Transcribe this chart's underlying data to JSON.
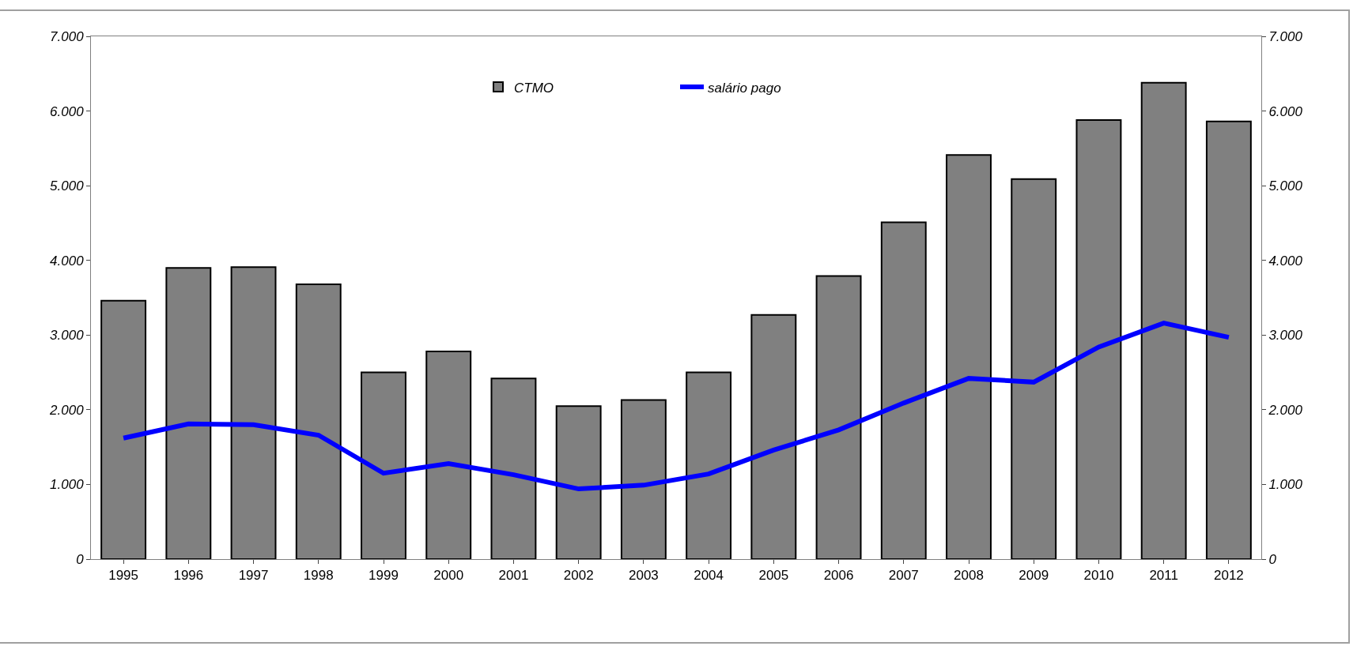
{
  "chart_data": {
    "type": "bar",
    "categories": [
      "1995",
      "1996",
      "1997",
      "1998",
      "1999",
      "2000",
      "2001",
      "2002",
      "2003",
      "2004",
      "2005",
      "2006",
      "2007",
      "2008",
      "2009",
      "2010",
      "2011",
      "2012"
    ],
    "series": [
      {
        "name": "CTMO",
        "color": "#808080",
        "values": [
          3460,
          3900,
          3910,
          3680,
          2500,
          2780,
          2420,
          2050,
          2130,
          2500,
          3270,
          3790,
          4510,
          5410,
          5090,
          5880,
          6380,
          5860
        ]
      },
      {
        "name": "salário pago",
        "type": "line",
        "axis": "y2",
        "color": "#0000ff",
        "values": [
          1620,
          1810,
          1800,
          1660,
          1150,
          1280,
          1130,
          940,
          990,
          1140,
          1460,
          1730,
          2090,
          2420,
          2370,
          2840,
          3160,
          2970
        ]
      }
    ],
    "ylim": [
      0,
      7000
    ],
    "yticks": [
      {
        "value": 0,
        "label": "0"
      },
      {
        "value": 1000,
        "label": "1.000"
      },
      {
        "value": 2000,
        "label": "2.000"
      },
      {
        "value": 3000,
        "label": "3.000"
      },
      {
        "value": 4000,
        "label": "4.000"
      },
      {
        "value": 5000,
        "label": "5.000"
      },
      {
        "value": 6000,
        "label": "6.000"
      },
      {
        "value": 7000,
        "label": "7.000"
      }
    ],
    "y2lim": [
      0,
      7000
    ],
    "y2ticks": [
      {
        "value": 0,
        "label": "0"
      },
      {
        "value": 1000,
        "label": "1.000"
      },
      {
        "value": 2000,
        "label": "2.000"
      },
      {
        "value": 3000,
        "label": "3.000"
      },
      {
        "value": 4000,
        "label": "4.000"
      },
      {
        "value": 5000,
        "label": "5.000"
      },
      {
        "value": 6000,
        "label": "6.000"
      },
      {
        "value": 7000,
        "label": "7.000"
      }
    ],
    "grid": false,
    "legend": "top",
    "marker": "none",
    "line_style": "solid"
  }
}
